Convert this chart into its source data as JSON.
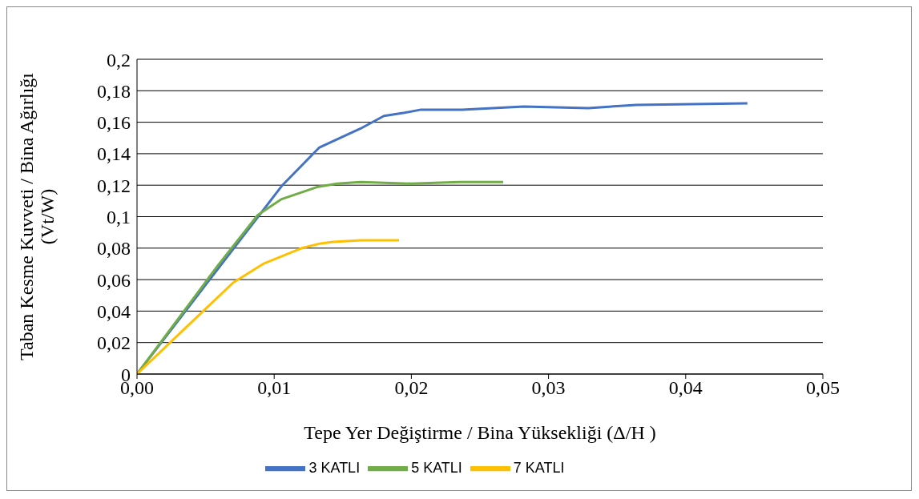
{
  "chart_data": {
    "type": "line",
    "xlabel": "Tepe Yer Değiştirme / Bina Yüksekliği (Δ/H )",
    "ylabel": "Taban Kesme Kuvveti / Bina Ağırlığı (Vt/W)",
    "xlim": [
      0,
      0.05
    ],
    "xticks": [
      {
        "value": 0,
        "label": "0,00"
      },
      {
        "value": 0.01,
        "label": "0,01"
      },
      {
        "value": 0.02,
        "label": "0,02"
      },
      {
        "value": 0.03,
        "label": "0,03"
      },
      {
        "value": 0.04,
        "label": "0,04"
      },
      {
        "value": 0.05,
        "label": "0,05"
      }
    ],
    "ylim": [
      0,
      0.2
    ],
    "yticks": [
      0,
      {
        "value": 0.02,
        "label": "0,02"
      },
      {
        "value": 0.04,
        "label": "0,04"
      },
      {
        "value": 0.06,
        "label": "0,06"
      },
      {
        "value": 0.08,
        "label": "0,08"
      },
      {
        "value": 0.1,
        "label": "0,1"
      },
      {
        "value": 0.12,
        "label": "0,12"
      },
      {
        "value": 0.14,
        "label": "0,14"
      },
      {
        "value": 0.16,
        "label": "0,16"
      },
      {
        "value": 0.18,
        "label": "0,18"
      },
      {
        "value": 0.2,
        "label": "0,2"
      }
    ],
    "grid": "y",
    "legend": "bottom",
    "marker": "none",
    "line_style": "solid",
    "series": [
      {
        "name": "3 KATLI",
        "color": "#4472c4",
        "x": [
          0,
          0.0106,
          0.0133,
          0.0163,
          0.018,
          0.0195,
          0.0207,
          0.0237,
          0.0282,
          0.0329,
          0.0364,
          0.0445
        ],
        "values": [
          0,
          0.12,
          0.144,
          0.156,
          0.164,
          0.166,
          0.168,
          0.168,
          0.17,
          0.169,
          0.171,
          0.172
        ]
      },
      {
        "name": "5 KATLI",
        "color": "#70ad47",
        "x": [
          0,
          0.0059,
          0.0088,
          0.0105,
          0.0132,
          0.0146,
          0.0163,
          0.02,
          0.0235,
          0.0267
        ],
        "values": [
          0,
          0.069,
          0.101,
          0.111,
          0.119,
          0.121,
          0.122,
          0.121,
          0.122,
          0.122
        ]
      },
      {
        "name": "7 KATLI",
        "color": "#ffc000",
        "x": [
          0,
          0.007,
          0.0092,
          0.012,
          0.0134,
          0.0143,
          0.0163,
          0.0191
        ],
        "values": [
          0,
          0.058,
          0.07,
          0.08,
          0.083,
          0.084,
          0.085,
          0.085
        ]
      }
    ]
  }
}
